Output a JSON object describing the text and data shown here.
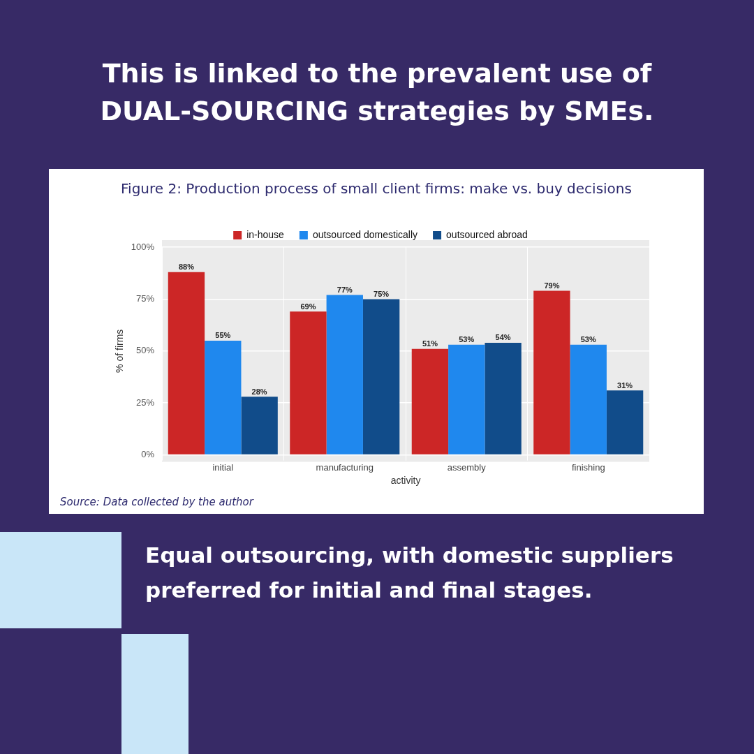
{
  "chart_data": {
    "type": "bar",
    "title": "This is linked to the prevalent use of DUAL-SOURCING strategies by SMEs.",
    "subtitle": "Figure 2: Production process of small client firms: make vs. buy decisions",
    "xlabel": "activity",
    "ylabel": "% of firms",
    "categories": [
      "initial",
      "manufacturing",
      "assembly",
      "finishing"
    ],
    "series": [
      {
        "name": "in-house",
        "color": "#cc2626",
        "values": [
          88,
          69,
          51,
          79
        ],
        "value_labels": [
          "88%",
          "69%",
          "51%",
          "79%"
        ]
      },
      {
        "name": "outsourced domestically",
        "color": "#1f88ee",
        "values": [
          55,
          77,
          53,
          53
        ],
        "value_labels": [
          "55%",
          "77%",
          "53%",
          "53%"
        ]
      },
      {
        "name": "outsourced abroad",
        "color": "#114c8a",
        "values": [
          28,
          75,
          54,
          31
        ],
        "value_labels": [
          "28%",
          "75%",
          "54%",
          "31%"
        ]
      }
    ],
    "ylim": [
      0,
      100
    ],
    "yticks": [
      {
        "value": 0,
        "label": "0%"
      },
      {
        "value": 25,
        "label": "25%"
      },
      {
        "value": 50,
        "label": "50%"
      },
      {
        "value": 75,
        "label": "75%"
      },
      {
        "value": 100,
        "label": "100%"
      }
    ],
    "grid": true,
    "legend": "top",
    "annotations": [
      "Source: Data collected by the author",
      "Equal outsourcing, with domestic suppliers preferred for initial and final stages."
    ]
  }
}
